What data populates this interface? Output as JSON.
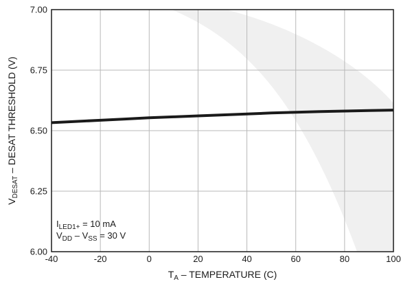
{
  "chart_data": {
    "type": "line",
    "xlabel": {
      "main": "T",
      "sub": "A",
      "rest": " – TEMPERATURE (C)"
    },
    "ylabel": {
      "main": "V",
      "sub": "DESAT",
      "rest": " – DESAT THRESHOLD (V)"
    },
    "xlim": [
      -40,
      100
    ],
    "ylim": [
      6.0,
      7.0
    ],
    "xticks": [
      -40,
      -20,
      0,
      20,
      40,
      60,
      80,
      100
    ],
    "xtick_labels": [
      "-40",
      "-20",
      "0",
      "20",
      "40",
      "60",
      "80",
      "100"
    ],
    "yticks": [
      6.0,
      6.25,
      6.5,
      6.75,
      7.0
    ],
    "ytick_labels": [
      "6.00",
      "6.25",
      "6.50",
      "6.75",
      "7.00"
    ],
    "grid": true,
    "series": [
      {
        "x": [
          -40,
          -30,
          -20,
          -10,
          0,
          10,
          20,
          30,
          40,
          50,
          60,
          70,
          80,
          90,
          100
        ],
        "y": [
          6.533,
          6.538,
          6.543,
          6.548,
          6.553,
          6.557,
          6.561,
          6.565,
          6.569,
          6.573,
          6.576,
          6.579,
          6.581,
          6.583,
          6.585
        ]
      }
    ],
    "annotations": [
      {
        "parts": [
          {
            "t": "I",
            "sub": false
          },
          {
            "t": "LED1+",
            "sub": true
          },
          {
            "t": " = 10 mA",
            "sub": false
          }
        ]
      },
      {
        "parts": [
          {
            "t": "V",
            "sub": false
          },
          {
            "t": "DD",
            "sub": true
          },
          {
            "t": " – V",
            "sub": false
          },
          {
            "t": "SS",
            "sub": true
          },
          {
            "t": " = 30 V",
            "sub": false
          }
        ]
      }
    ],
    "colors": {
      "line": "#1a1a1a",
      "grid": "#b8b8b8",
      "frame": "#1a1a1a",
      "watermark": "#f0f0f0"
    }
  }
}
